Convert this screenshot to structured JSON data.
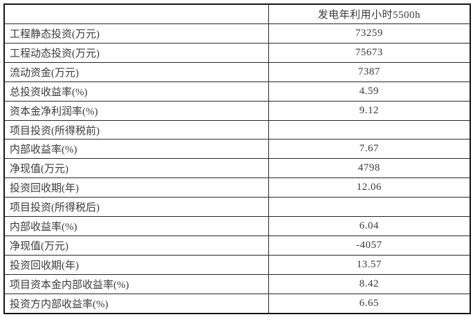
{
  "table": {
    "header": {
      "label_col": "",
      "value_col": "发电年利用小时5500h"
    },
    "rows": [
      {
        "label": "工程静态投资(万元)",
        "value": "73259"
      },
      {
        "label": "工程动态投资(万元)",
        "value": "75673"
      },
      {
        "label": "流动资金(万元)",
        "value": "7387"
      },
      {
        "label": "总投资收益率(%)",
        "value": "4.59"
      },
      {
        "label": "资本金净利润率(%)",
        "value": "9.12"
      },
      {
        "label": "项目投资(所得税前)",
        "value": ""
      },
      {
        "label": "内部收益率(%)",
        "value": "7.67"
      },
      {
        "label": "净现值(万元)",
        "value": "4798"
      },
      {
        "label": "投资回收期(年)",
        "value": "12.06"
      },
      {
        "label": "项目投资(所得税后)",
        "value": ""
      },
      {
        "label": "内部收益率(%)",
        "value": "6.04"
      },
      {
        "label": "净现值(万元)",
        "value": "-4057"
      },
      {
        "label": "投资回收期(年)",
        "value": "13.57"
      },
      {
        "label": "项目资本金内部收益率(%)",
        "value": "8.42"
      },
      {
        "label": "投资方内部收益率(%)",
        "value": "6.65"
      }
    ]
  }
}
